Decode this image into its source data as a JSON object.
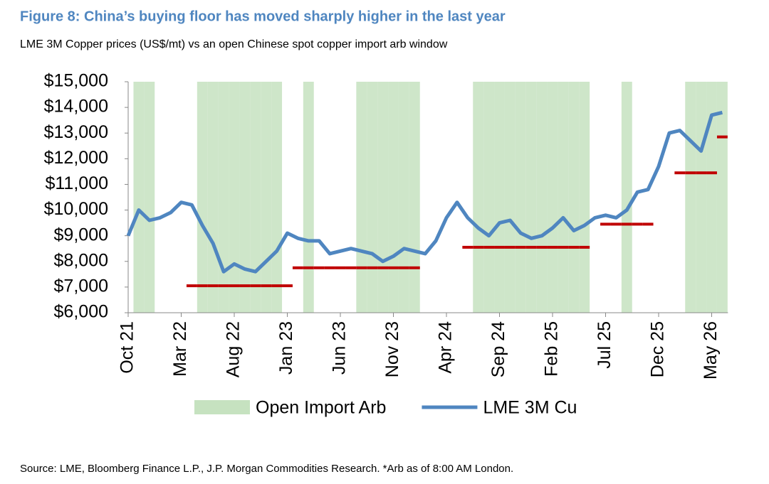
{
  "chart_data": {
    "type": "line",
    "title": "Figure 8: China’s buying floor has moved sharply higher in the last year",
    "subtitle": "LME 3M Copper prices (US$/mt) vs an open Chinese spot copper import arb window",
    "source": "Source: LME, Bloomberg Finance L.P., J.P. Morgan Commodities Research. *Arb as of 8:00 AM London.",
    "x": [
      "Oct 21",
      null,
      null,
      null,
      null,
      "Mar 22",
      null,
      null,
      null,
      null,
      "Aug 22",
      null,
      null,
      null,
      null,
      "Jan 23",
      null,
      null,
      null,
      null,
      "Jun 23",
      null,
      null,
      null,
      null,
      "Nov 23",
      null,
      null,
      null,
      null,
      "Apr 24",
      null,
      null,
      null,
      null,
      "Sep 24",
      null,
      null,
      null,
      null,
      "Feb 25",
      null,
      null,
      null,
      null,
      "Jul 25",
      null,
      null,
      null,
      null,
      "Dec 25",
      null,
      null,
      null,
      null,
      "May 26",
      null
    ],
    "series": [
      {
        "name": "Open Import Arb",
        "color": "#c6e2c0",
        "kind": "band",
        "values": [
          0,
          1,
          1,
          0,
          0,
          0,
          0,
          1,
          1,
          1,
          1,
          1,
          1,
          1,
          1,
          0,
          0,
          1,
          0,
          0,
          0,
          0,
          1,
          1,
          1,
          1,
          1,
          1,
          0,
          0,
          0,
          0,
          0,
          1,
          1,
          1,
          1,
          1,
          1,
          1,
          1,
          1,
          1,
          1,
          0,
          0,
          0,
          1,
          0,
          0,
          0,
          0,
          0,
          1,
          1,
          1,
          1
        ]
      },
      {
        "name": "LME 3M Cu",
        "color": "#4f86c0",
        "kind": "line",
        "values": [
          9000,
          10000,
          9600,
          9700,
          9900,
          10300,
          10200,
          9400,
          8700,
          7600,
          7900,
          7700,
          7600,
          8000,
          8400,
          9100,
          8900,
          8800,
          8800,
          8300,
          8400,
          8500,
          8400,
          8300,
          8000,
          8200,
          8500,
          8400,
          8300,
          8800,
          9700,
          10300,
          9700,
          9300,
          9000,
          9500,
          9600,
          9100,
          8900,
          9000,
          9300,
          9700,
          9200,
          9400,
          9700,
          9800,
          9700,
          10000,
          10700,
          10800,
          11700,
          13000,
          13100,
          12700,
          12300,
          13700,
          13800
        ]
      }
    ],
    "floor_color": "#c00000",
    "floor_values": [
      null,
      null,
      null,
      null,
      null,
      null,
      7050,
      7050,
      7050,
      7050,
      7050,
      7050,
      7050,
      7050,
      7050,
      7050,
      7750,
      7750,
      7750,
      7750,
      7750,
      7750,
      7750,
      7750,
      7750,
      7750,
      7750,
      7750,
      null,
      null,
      null,
      null,
      8550,
      8550,
      8550,
      8550,
      8550,
      8550,
      8550,
      8550,
      8550,
      8550,
      8550,
      8550,
      null,
      9450,
      9450,
      9450,
      9450,
      9450,
      null,
      null,
      11450,
      11450,
      11450,
      11450,
      12850
    ],
    "ylim": [
      6000,
      15000
    ],
    "yticks": [
      {
        "value": 6000,
        "label": "$6,000"
      },
      {
        "value": 7000,
        "label": "$7,000"
      },
      {
        "value": 8000,
        "label": "$8,000"
      },
      {
        "value": 9000,
        "label": "$9,000"
      },
      {
        "value": 10000,
        "label": "$10,000"
      },
      {
        "value": 11000,
        "label": "$11,000"
      },
      {
        "value": 12000,
        "label": "$12,000"
      },
      {
        "value": 13000,
        "label": "$13,000"
      },
      {
        "value": 14000,
        "label": "$14,000"
      },
      {
        "value": 15000,
        "label": "$15,000"
      }
    ],
    "grid": false
  }
}
